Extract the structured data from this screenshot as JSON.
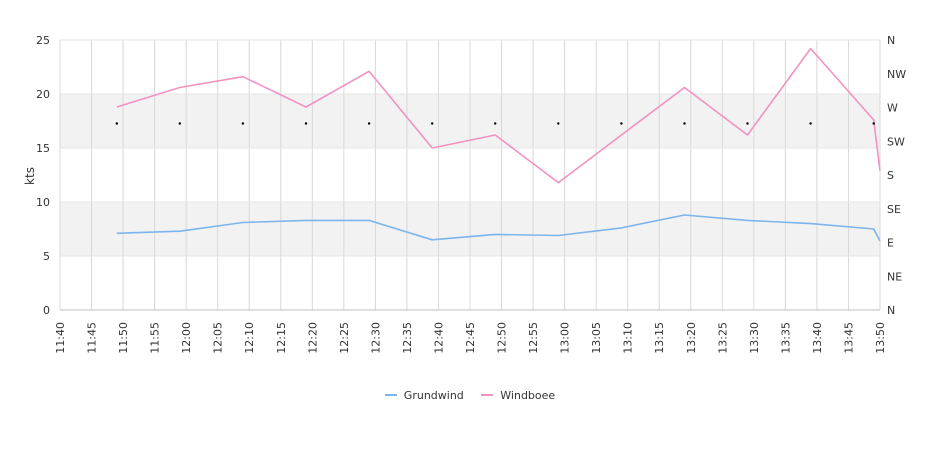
{
  "chart_data": {
    "type": "line",
    "ylabel": "kts",
    "ylim": [
      0,
      25
    ],
    "y_ticks": [
      0,
      5,
      10,
      15,
      20,
      25
    ],
    "y_bands": [
      [
        5,
        10
      ],
      [
        15,
        20
      ]
    ],
    "x_ticks": [
      "11:40",
      "11:45",
      "11:50",
      "11:55",
      "12:00",
      "12:05",
      "12:10",
      "12:15",
      "12:20",
      "12:25",
      "12:30",
      "12:35",
      "12:40",
      "12:45",
      "12:50",
      "12:55",
      "13:00",
      "13:05",
      "13:10",
      "13:15",
      "13:20",
      "13:25",
      "13:30",
      "13:35",
      "13:40",
      "13:45",
      "13:50"
    ],
    "x_range": [
      "11:40",
      "13:50"
    ],
    "direction_axis": {
      "labels": [
        "N",
        "NE",
        "E",
        "SE",
        "S",
        "SW",
        "W",
        "NW",
        "N"
      ]
    },
    "series": [
      {
        "name": "Grundwind",
        "color": "#7cb5ec",
        "x": [
          "11:49",
          "11:59",
          "12:09",
          "12:19",
          "12:29",
          "12:39",
          "12:49",
          "12:59",
          "13:09",
          "13:19",
          "13:29",
          "13:39",
          "13:49",
          "13:50"
        ],
        "values": [
          7.1,
          7.3,
          8.1,
          8.3,
          8.3,
          6.5,
          7.0,
          6.9,
          7.6,
          8.8,
          8.3,
          8.0,
          7.5,
          6.4
        ]
      },
      {
        "name": "Windboee",
        "color": "#f192c1",
        "x": [
          "11:49",
          "11:59",
          "12:09",
          "12:19",
          "12:29",
          "12:39",
          "12:49",
          "12:59",
          "13:09",
          "13:19",
          "13:29",
          "13:39",
          "13:49",
          "13:50"
        ],
        "values": [
          18.8,
          20.6,
          21.6,
          18.8,
          22.1,
          15.0,
          16.2,
          11.8,
          16.2,
          20.6,
          16.2,
          24.2,
          17.6,
          12.9
        ]
      }
    ],
    "direction_markers": {
      "x": [
        "11:49",
        "11:59",
        "12:09",
        "12:19",
        "12:29",
        "12:39",
        "12:49",
        "12:59",
        "13:09",
        "13:19",
        "13:29",
        "13:39",
        "13:49"
      ],
      "direction": [
        "W",
        "W",
        "W",
        "W",
        "W",
        "W",
        "W",
        "W",
        "W",
        "W",
        "W",
        "W",
        "W"
      ]
    },
    "legend_position": "bottom-center",
    "grid": true
  }
}
